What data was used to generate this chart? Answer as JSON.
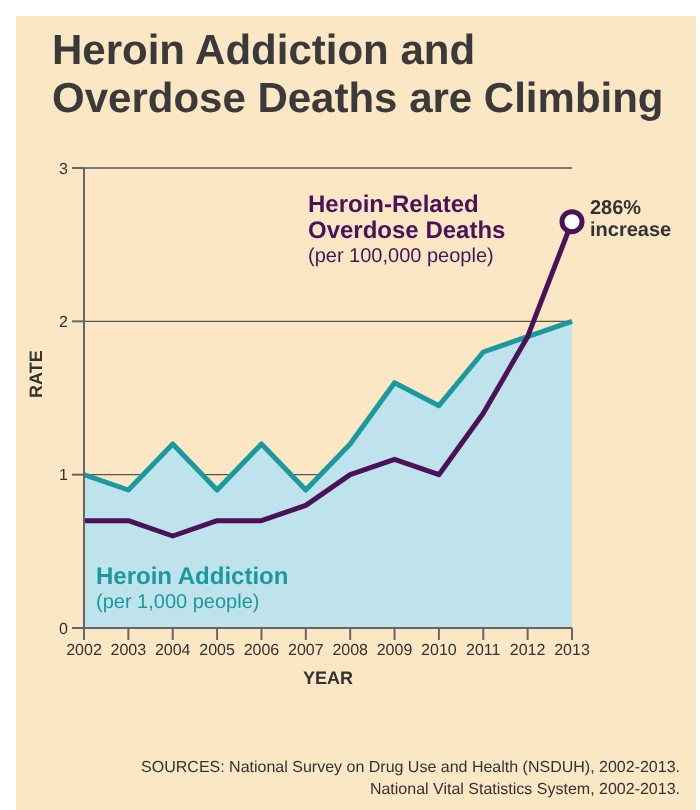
{
  "chart_data": {
    "type": "line",
    "title": "Heroin Addiction and Overdose Deaths are Climbing",
    "xlabel": "YEAR",
    "ylabel": "RATE",
    "categories": [
      "2002",
      "2003",
      "2004",
      "2005",
      "2006",
      "2007",
      "2008",
      "2009",
      "2010",
      "2011",
      "2012",
      "2013"
    ],
    "series": [
      {
        "name": "Heroin Addiction (per 1,000 people)",
        "type": "area",
        "color": "#1a9a9e",
        "values": [
          1.0,
          0.9,
          1.2,
          0.9,
          1.2,
          0.9,
          1.2,
          1.6,
          1.45,
          1.8,
          1.9,
          2.0
        ]
      },
      {
        "name": "Heroin-Related Overdose Deaths (per 100,000 people)",
        "color": "#4b1259",
        "values": [
          0.7,
          0.7,
          0.6,
          0.7,
          0.7,
          0.8,
          1.0,
          1.1,
          1.0,
          1.4,
          1.9,
          2.65
        ]
      }
    ],
    "ylim": [
      0,
      3
    ],
    "yticks": [
      0,
      1,
      2,
      3
    ],
    "grid": "y",
    "marker": "none",
    "line_style": "solid",
    "annotations": [
      {
        "text": "286% increase",
        "x": "2013",
        "y": 2.65
      },
      "SOURCES: National Survey on Drug Use and Health (NSDUH), 2002-2013.",
      "National Vital Statistics System, 2002-2013."
    ]
  }
}
